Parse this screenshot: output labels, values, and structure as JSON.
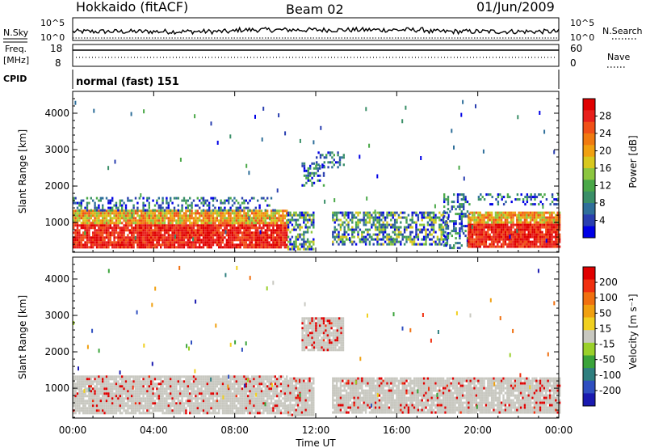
{
  "header": {
    "station": "Hokkaido (fitACF)",
    "beam": "Beam 02",
    "date": "01/Jun/2009"
  },
  "top_panels": {
    "noise": {
      "left_label": "N.Sky",
      "right_label": "N.Search",
      "left_ticks": [
        "10^5",
        "10^0"
      ],
      "right_ticks": [
        "10^5",
        "10^0"
      ]
    },
    "freq": {
      "left_label_1": "Freq.",
      "left_label_2": "[MHz]",
      "left_ticks": [
        "18",
        "8"
      ],
      "right_label": "Nave",
      "right_ticks": [
        "60",
        "0"
      ]
    },
    "cpid": {
      "label": "CPID",
      "text": "normal (fast) 151"
    }
  },
  "chart_data": [
    {
      "type": "heatmap",
      "title": "",
      "xlabel": "Time UT",
      "ylabel": "Slant Range [km]",
      "x_ticks": [
        "00:00",
        "04:00",
        "08:00",
        "12:00",
        "16:00",
        "20:00",
        "00:00"
      ],
      "y_ticks": [
        1000,
        2000,
        3000,
        4000
      ],
      "ylim": [
        180,
        4600
      ],
      "xlim_hours": [
        0,
        24
      ],
      "colorbar": {
        "label": "Power [dB]",
        "ticks": [
          "28",
          "24",
          "20",
          "16",
          "12",
          "8",
          "4"
        ],
        "range": [
          0,
          32
        ],
        "colors": [
          "#0000e6",
          "#2a3fb0",
          "#2f6f9a",
          "#3a8f68",
          "#4aa848",
          "#8cc63f",
          "#d8c81e",
          "#f0a010",
          "#f07a10",
          "#f05018",
          "#e8201c",
          "#e00000"
        ]
      },
      "regions": [
        {
          "t0": 0.0,
          "t1": 10.6,
          "r0": 300,
          "r1": 1350,
          "level": "strong"
        },
        {
          "t0": 0.0,
          "t1": 10.0,
          "r0": 1350,
          "r1": 1700,
          "level": "weak"
        },
        {
          "t0": 10.6,
          "t1": 11.9,
          "r0": 300,
          "r1": 1300,
          "level": "mixed"
        },
        {
          "t0": 12.8,
          "t1": 18.5,
          "r0": 400,
          "r1": 1300,
          "level": "mixed"
        },
        {
          "t0": 18.3,
          "t1": 19.6,
          "r0": 300,
          "r1": 1800,
          "level": "weak"
        },
        {
          "t0": 19.5,
          "t1": 24.0,
          "r0": 350,
          "r1": 1300,
          "level": "strong"
        },
        {
          "t0": 20.0,
          "t1": 24.0,
          "r0": 1500,
          "r1": 1800,
          "level": "weak"
        },
        {
          "t0": 11.3,
          "t1": 12.4,
          "r0": 2050,
          "r1": 2650,
          "level": "weak"
        },
        {
          "t0": 12.0,
          "t1": 13.4,
          "r0": 2500,
          "r1": 2950,
          "level": "weak"
        }
      ]
    },
    {
      "type": "heatmap",
      "title": "",
      "xlabel": "Time UT",
      "ylabel": "Slant Range [km]",
      "x_ticks": [
        "00:00",
        "04:00",
        "08:00",
        "12:00",
        "16:00",
        "20:00",
        "00:00"
      ],
      "y_ticks": [
        1000,
        2000,
        3000,
        4000
      ],
      "ylim": [
        180,
        4600
      ],
      "xlim_hours": [
        0,
        24
      ],
      "colorbar": {
        "label": "Velocity [m s⁻¹]",
        "ticks": [
          "200",
          "100",
          "50",
          "15",
          "-15",
          "-50",
          "-100",
          "-200"
        ],
        "colors": [
          "#1a1ab0",
          "#2f4fc0",
          "#2f7f7f",
          "#3aa33a",
          "#9ad02a",
          "#c8c8c0",
          "#f0d020",
          "#f0a010",
          "#f07010",
          "#f03010",
          "#e00000"
        ]
      },
      "regions": [
        {
          "t0": 0.0,
          "t1": 10.6,
          "r0": 300,
          "r1": 1350,
          "level": "ground"
        },
        {
          "t0": 10.6,
          "t1": 11.9,
          "r0": 300,
          "r1": 1300,
          "level": "ground"
        },
        {
          "t0": 12.8,
          "t1": 19.6,
          "r0": 350,
          "r1": 1300,
          "level": "ground"
        },
        {
          "t0": 19.5,
          "t1": 24.0,
          "r0": 350,
          "r1": 1300,
          "level": "ground"
        },
        {
          "t0": 11.3,
          "t1": 13.4,
          "r0": 2050,
          "r1": 2950,
          "level": "ground"
        }
      ]
    }
  ]
}
